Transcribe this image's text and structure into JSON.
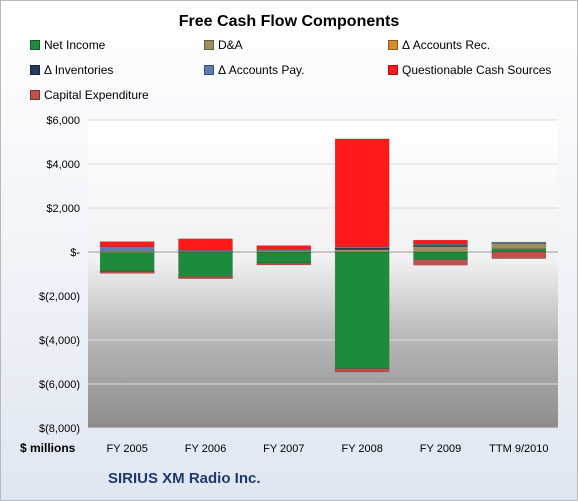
{
  "chart_data": {
    "type": "bar",
    "stacked": true,
    "title": "Free Cash Flow Components",
    "ylabel": "$ millions",
    "ylim": [
      -8000,
      6000
    ],
    "yticks": [
      6000,
      4000,
      2000,
      0,
      -2000,
      -4000,
      -6000,
      -8000
    ],
    "yticklabels": [
      "$6,000",
      "$4,000",
      "$2,000",
      "$-",
      "$(2,000)",
      "$(4,000)",
      "$(6,000)",
      "$(8,000)"
    ],
    "categories": [
      "FY 2005",
      "FY 2006",
      "FY 2007",
      "FY 2008",
      "FY 2009",
      "TTM 9/2010"
    ],
    "legend_placement": "top",
    "series": [
      {
        "name": "Net Income",
        "color": "#1e8a3c",
        "values": [
          -860,
          -1100,
          -500,
          -5300,
          -350,
          150
        ]
      },
      {
        "name": "D&A",
        "color": "#9c9060",
        "values": [
          40,
          60,
          80,
          150,
          280,
          270
        ]
      },
      {
        "name": "Δ Accounts Rec.",
        "color": "#d88a2a",
        "values": [
          -20,
          -30,
          -20,
          20,
          30,
          20
        ]
      },
      {
        "name": "Δ Inventories",
        "color": "#243a5e",
        "values": [
          -10,
          -10,
          0,
          10,
          10,
          0
        ]
      },
      {
        "name": "Δ Accounts Pay.",
        "color": "#5a7fae",
        "values": [
          200,
          20,
          50,
          60,
          40,
          10
        ]
      },
      {
        "name": "Questionable Cash Sources",
        "color": "#ff1a1a",
        "values": [
          230,
          520,
          160,
          4900,
          180,
          0
        ]
      },
      {
        "name": "Capital Expenditure",
        "color": "#c0504d",
        "values": [
          -80,
          -70,
          -70,
          -150,
          -250,
          -300
        ]
      }
    ]
  },
  "company": "SIRIUS XM Radio Inc."
}
